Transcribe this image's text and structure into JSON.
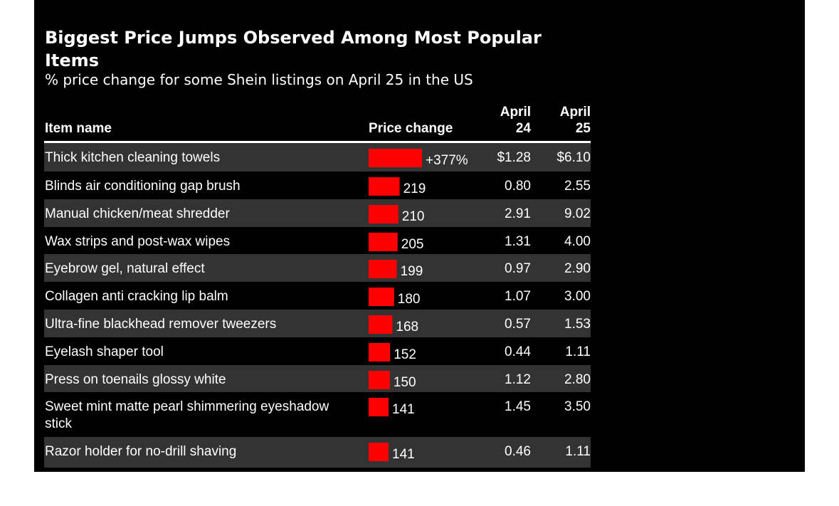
{
  "title": "Biggest Price Jumps Observed Among Most Popular Items",
  "subtitle": "% price change for some Shein listings on April 25 in the US",
  "chart_data": {
    "type": "table",
    "columns": [
      "Item name",
      "Price change",
      "April 24",
      "April 25"
    ],
    "columns_lines": [
      [
        "Item name"
      ],
      [
        "Price change"
      ],
      [
        "April",
        "24"
      ],
      [
        "April",
        "25"
      ]
    ],
    "bar_color": "#ff0000",
    "rows": [
      {
        "item": "Thick kitchen cleaning towels",
        "change": 377,
        "change_label": "+377%",
        "april24": "$1.28",
        "april25": "$6.10"
      },
      {
        "item": "Blinds air conditioning gap brush",
        "change": 219,
        "change_label": "219",
        "april24": "0.80",
        "april25": "2.55"
      },
      {
        "item": "Manual chicken/meat shredder",
        "change": 210,
        "change_label": "210",
        "april24": "2.91",
        "april25": "9.02"
      },
      {
        "item": "Wax strips and post-wax wipes",
        "change": 205,
        "change_label": "205",
        "april24": "1.31",
        "april25": "4.00"
      },
      {
        "item": "Eyebrow gel, natural effect",
        "change": 199,
        "change_label": "199",
        "april24": "0.97",
        "april25": "2.90"
      },
      {
        "item": "Collagen anti cracking lip balm",
        "change": 180,
        "change_label": "180",
        "april24": "1.07",
        "april25": "3.00"
      },
      {
        "item": "Ultra-fine blackhead remover tweezers",
        "change": 168,
        "change_label": "168",
        "april24": "0.57",
        "april25": "1.53"
      },
      {
        "item": "Eyelash shaper tool",
        "change": 152,
        "change_label": "152",
        "april24": "0.44",
        "april25": "1.11"
      },
      {
        "item": "Press on toenails glossy white",
        "change": 150,
        "change_label": "150",
        "april24": "1.12",
        "april25": "2.80"
      },
      {
        "item": "Sweet mint matte pearl shimmering eyeshadow stick",
        "item_lines": [
          "Sweet mint matte pearl shimmering eyeshadow",
          "stick"
        ],
        "change": 141,
        "change_label": "141",
        "april24": "1.45",
        "april25": "3.50"
      },
      {
        "item": "Razor holder for no-drill shaving",
        "change": 141,
        "change_label": "141",
        "april24": "0.46",
        "april25": "1.11"
      }
    ]
  }
}
